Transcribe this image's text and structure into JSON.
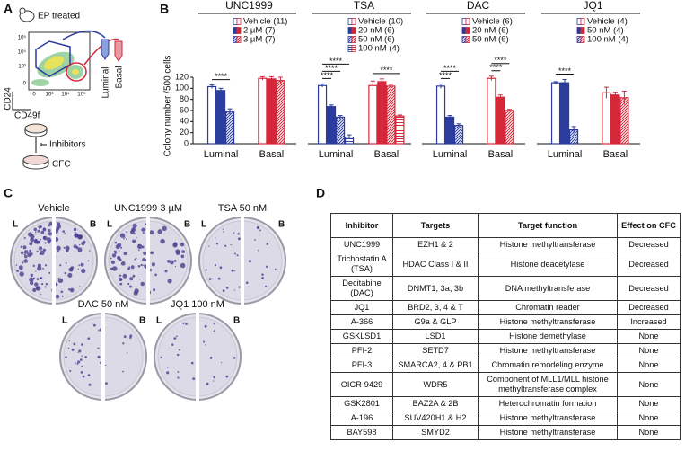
{
  "panel_labels": [
    "A",
    "B",
    "C",
    "D"
  ],
  "panel_a": {
    "title": "EP treated",
    "y_axis_label": "CD24",
    "x_axis_label": "CD49f",
    "y_ticks": [
      "10⁵",
      "10⁴",
      "10³",
      "0"
    ],
    "x_ticks": [
      "0",
      "10³",
      "10⁴",
      "10⁵"
    ],
    "populations": [
      "Luminal",
      "Basal"
    ],
    "step": "Inhibitors",
    "readout": "CFC"
  },
  "chart_data": [
    {
      "type": "bar",
      "title": "UNC1999",
      "ylabel": "Colony number /500 cells",
      "categories": [
        "Luminal",
        "Basal"
      ],
      "category_colors": [
        "#2b3c9e",
        "#d4283a"
      ],
      "ylim": [
        0,
        120
      ],
      "yticks": [
        0,
        20,
        40,
        60,
        80,
        100,
        120
      ],
      "series": [
        {
          "name": "Vehicle (11)",
          "pattern": "open",
          "values": [
            103,
            118
          ],
          "errors": [
            3,
            3
          ]
        },
        {
          "name": "2 µM (7)",
          "pattern": "solid",
          "values": [
            96,
            117
          ],
          "errors": [
            4,
            4
          ]
        },
        {
          "name": "3 µM (7)",
          "pattern": "hatch",
          "values": [
            58,
            114
          ],
          "errors": [
            5,
            6
          ]
        }
      ],
      "annotations": [
        {
          "label": "****",
          "category": 0,
          "series": [
            0,
            2
          ]
        }
      ]
    },
    {
      "type": "bar",
      "title": "TSA",
      "categories": [
        "Luminal",
        "Basal"
      ],
      "category_colors": [
        "#2b3c9e",
        "#d4283a"
      ],
      "ylim": [
        0,
        120
      ],
      "series": [
        {
          "name": "Vehicle (10)",
          "pattern": "open",
          "values": [
            105,
            105
          ],
          "errors": [
            3,
            8
          ]
        },
        {
          "name": "20 nM (6)",
          "pattern": "solid",
          "values": [
            67,
            112
          ],
          "errors": [
            3,
            5
          ]
        },
        {
          "name": "50 nM (6)",
          "pattern": "hatch",
          "values": [
            48,
            104
          ],
          "errors": [
            3,
            3
          ]
        },
        {
          "name": "100 nM (4)",
          "pattern": "lines",
          "values": [
            12,
            50
          ],
          "errors": [
            4,
            2
          ]
        }
      ],
      "annotations": [
        {
          "label": "****",
          "category": 0,
          "series": [
            0,
            1
          ]
        },
        {
          "label": "****",
          "category": 0,
          "series": [
            0,
            2
          ]
        },
        {
          "label": "****",
          "category": 0,
          "series": [
            0,
            3
          ]
        },
        {
          "label": "****",
          "category": 1,
          "series": [
            0,
            3
          ]
        }
      ]
    },
    {
      "type": "bar",
      "title": "DAC",
      "categories": [
        "Luminal",
        "Basal"
      ],
      "category_colors": [
        "#2b3c9e",
        "#d4283a"
      ],
      "ylim": [
        0,
        120
      ],
      "series": [
        {
          "name": "Vehicle (6)",
          "pattern": "open",
          "values": [
            104,
            118
          ],
          "errors": [
            4,
            4
          ]
        },
        {
          "name": "20 nM (6)",
          "pattern": "solid",
          "values": [
            48,
            84
          ],
          "errors": [
            3,
            4
          ]
        },
        {
          "name": "50 nM (6)",
          "pattern": "hatch",
          "values": [
            33,
            60
          ],
          "errors": [
            3,
            2
          ]
        }
      ],
      "annotations": [
        {
          "label": "****",
          "category": 0,
          "series": [
            0,
            1
          ]
        },
        {
          "label": "****",
          "category": 0,
          "series": [
            0,
            2
          ]
        },
        {
          "label": "****",
          "category": 1,
          "series": [
            0,
            1
          ]
        },
        {
          "label": "****",
          "category": 1,
          "series": [
            0,
            2
          ]
        }
      ]
    },
    {
      "type": "bar",
      "title": "JQ1",
      "categories": [
        "Luminal",
        "Basal"
      ],
      "category_colors": [
        "#2b3c9e",
        "#d4283a"
      ],
      "ylim": [
        0,
        120
      ],
      "series": [
        {
          "name": "Vehicle (4)",
          "pattern": "open",
          "values": [
            110,
            92
          ],
          "errors": [
            2,
            10
          ]
        },
        {
          "name": "50 nM (4)",
          "pattern": "solid",
          "values": [
            110,
            88
          ],
          "errors": [
            6,
            5
          ]
        },
        {
          "name": "100 nM (4)",
          "pattern": "hatch",
          "values": [
            25,
            83
          ],
          "errors": [
            6,
            12
          ]
        }
      ],
      "annotations": [
        {
          "label": "****",
          "category": 0,
          "series": [
            0,
            2
          ]
        }
      ]
    }
  ],
  "panel_c": {
    "plates": [
      {
        "title": "Vehicle",
        "left": "L",
        "right": "B"
      },
      {
        "title": "UNC1999 3 µM",
        "left": "L",
        "right": "B"
      },
      {
        "title": "TSA 50 nM",
        "left": "L",
        "right": "B"
      },
      {
        "title": "DAC 50 nM",
        "left": "L",
        "right": "B"
      },
      {
        "title": "JQ1 100 nM",
        "left": "L",
        "right": "B"
      }
    ]
  },
  "panel_d": {
    "header": [
      "Inhibitor",
      "Targets",
      "Target function",
      "Effect on CFC"
    ],
    "rows": [
      [
        "UNC1999",
        "EZH1 & 2",
        "Histone methyltransferase",
        "Decreased"
      ],
      [
        "Trichostatin A (TSA)",
        "HDAC Class I & II",
        "Histone deacetylase",
        "Decreased"
      ],
      [
        "Decitabine (DAC)",
        "DNMT1, 3a, 3b",
        "DNA methyltransferase",
        "Decreased"
      ],
      [
        "JQ1",
        "BRD2, 3, 4 & T",
        "Chromatin reader",
        "Decreased"
      ],
      [
        "A-366",
        "G9a & GLP",
        "Histone methyltransferase",
        "Increased"
      ],
      [
        "GSKLSD1",
        "LSD1",
        "Histone demethylase",
        "None"
      ],
      [
        "PFI-2",
        "SETD7",
        "Histone methyltransferase",
        "None"
      ],
      [
        "PFI-3",
        "SMARCA2, 4 & PB1",
        "Chromatin remodeling enzyme",
        "None"
      ],
      [
        "OICR-9429",
        "WDR5",
        "Component of MLL1/MLL histone methyltransferase complex",
        "None"
      ],
      [
        "GSK2801",
        "BAZ2A & 2B",
        "Heterochromatin formation",
        "None"
      ],
      [
        "A-196",
        "SUV420H1 & H2",
        "Histone methyltransferase",
        "None"
      ],
      [
        "BAY598",
        "SMYD2",
        "Histone methyltransferase",
        "None"
      ]
    ]
  }
}
